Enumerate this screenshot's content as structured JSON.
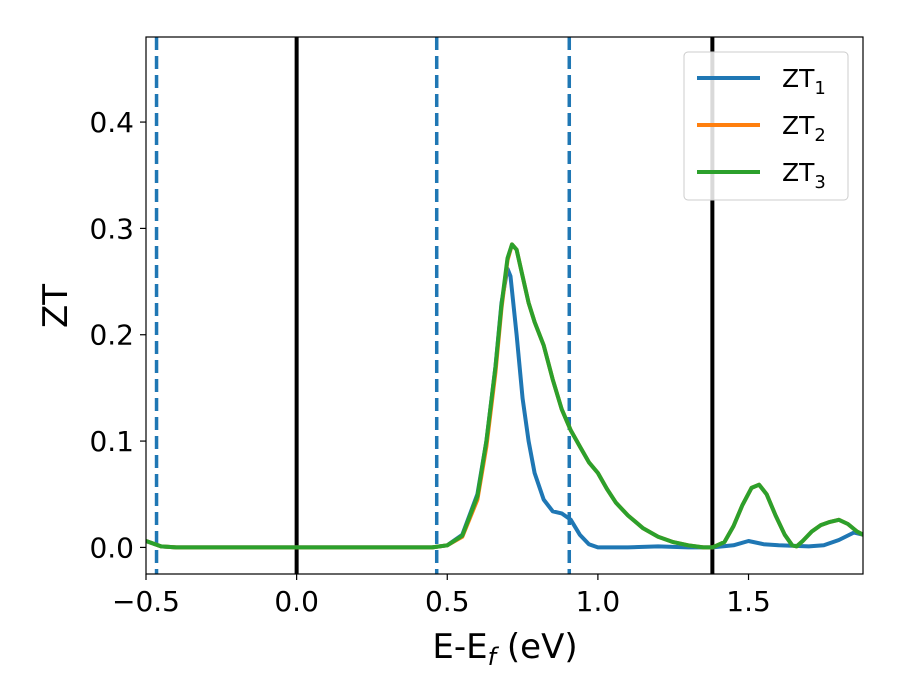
{
  "chart_data": {
    "type": "line",
    "xlabel": "E-E_f (eV)",
    "xlabel_parts": {
      "main": "E-E",
      "sub": "f",
      "tail": " (eV)"
    },
    "ylabel": "ZT",
    "xlim": [
      -0.5,
      1.88
    ],
    "ylim": [
      -0.025,
      0.48
    ],
    "x_ticks": [
      -0.5,
      0.0,
      0.5,
      1.0,
      1.5
    ],
    "x_tick_labels": [
      "−0.5",
      "0.0",
      "0.5",
      "1.0",
      "1.5"
    ],
    "y_ticks": [
      0.0,
      0.1,
      0.2,
      0.3,
      0.4
    ],
    "y_tick_labels": [
      "0.0",
      "0.1",
      "0.2",
      "0.3",
      "0.4"
    ],
    "grid": false,
    "legend_position": "top-right",
    "vertical_lines": [
      {
        "x": -0.465,
        "style": "dashed",
        "color": "#1f77b4"
      },
      {
        "x": 0.0,
        "style": "solid",
        "color": "#000000"
      },
      {
        "x": 0.465,
        "style": "dashed",
        "color": "#1f77b4"
      },
      {
        "x": 0.905,
        "style": "dashed",
        "color": "#1f77b4"
      },
      {
        "x": 1.38,
        "style": "solid",
        "color": "#000000"
      }
    ],
    "series": [
      {
        "name": "ZT1",
        "label_main": "ZT",
        "label_sub": "1",
        "color": "#1f77b4",
        "points": [
          [
            -0.5,
            0.006
          ],
          [
            -0.45,
            0.001
          ],
          [
            -0.4,
            0.0
          ],
          [
            0.0,
            0.0
          ],
          [
            0.3,
            0.0
          ],
          [
            0.45,
            0.0
          ],
          [
            0.5,
            0.002
          ],
          [
            0.55,
            0.012
          ],
          [
            0.6,
            0.05
          ],
          [
            0.63,
            0.1
          ],
          [
            0.66,
            0.17
          ],
          [
            0.68,
            0.23
          ],
          [
            0.7,
            0.262
          ],
          [
            0.71,
            0.255
          ],
          [
            0.73,
            0.2
          ],
          [
            0.75,
            0.14
          ],
          [
            0.77,
            0.1
          ],
          [
            0.79,
            0.07
          ],
          [
            0.82,
            0.045
          ],
          [
            0.85,
            0.034
          ],
          [
            0.88,
            0.032
          ],
          [
            0.91,
            0.026
          ],
          [
            0.94,
            0.012
          ],
          [
            0.97,
            0.003
          ],
          [
            1.0,
            0.0
          ],
          [
            1.1,
            0.0
          ],
          [
            1.2,
            0.001
          ],
          [
            1.3,
            0.0
          ],
          [
            1.38,
            0.0
          ],
          [
            1.45,
            0.002
          ],
          [
            1.5,
            0.006
          ],
          [
            1.55,
            0.003
          ],
          [
            1.6,
            0.002
          ],
          [
            1.7,
            0.001
          ],
          [
            1.75,
            0.002
          ],
          [
            1.8,
            0.007
          ],
          [
            1.85,
            0.014
          ],
          [
            1.88,
            0.012
          ]
        ]
      },
      {
        "name": "ZT2",
        "label_main": "ZT",
        "label_sub": "2",
        "color": "#ff7f0e",
        "points": [
          [
            -0.5,
            0.006
          ],
          [
            -0.45,
            0.001
          ],
          [
            -0.4,
            0.0
          ],
          [
            0.0,
            0.0
          ],
          [
            0.3,
            0.0
          ],
          [
            0.45,
            0.0
          ],
          [
            0.5,
            0.002
          ],
          [
            0.55,
            0.01
          ],
          [
            0.6,
            0.045
          ],
          [
            0.63,
            0.095
          ],
          [
            0.66,
            0.165
          ],
          [
            0.68,
            0.225
          ],
          [
            0.7,
            0.27
          ],
          [
            0.715,
            0.285
          ],
          [
            0.73,
            0.28
          ],
          [
            0.75,
            0.255
          ],
          [
            0.77,
            0.23
          ],
          [
            0.79,
            0.212
          ],
          [
            0.82,
            0.19
          ],
          [
            0.85,
            0.158
          ],
          [
            0.88,
            0.13
          ],
          [
            0.91,
            0.11
          ],
          [
            0.94,
            0.095
          ],
          [
            0.97,
            0.08
          ],
          [
            1.0,
            0.07
          ],
          [
            1.03,
            0.055
          ],
          [
            1.06,
            0.042
          ],
          [
            1.1,
            0.03
          ],
          [
            1.15,
            0.018
          ],
          [
            1.2,
            0.01
          ],
          [
            1.25,
            0.005
          ],
          [
            1.3,
            0.002
          ],
          [
            1.35,
            0.0
          ],
          [
            1.38,
            0.0
          ],
          [
            1.42,
            0.005
          ],
          [
            1.45,
            0.02
          ],
          [
            1.48,
            0.04
          ],
          [
            1.51,
            0.056
          ],
          [
            1.535,
            0.059
          ],
          [
            1.56,
            0.05
          ],
          [
            1.59,
            0.03
          ],
          [
            1.62,
            0.012
          ],
          [
            1.645,
            0.002
          ],
          [
            1.66,
            0.001
          ],
          [
            1.68,
            0.006
          ],
          [
            1.71,
            0.015
          ],
          [
            1.74,
            0.021
          ],
          [
            1.77,
            0.024
          ],
          [
            1.8,
            0.026
          ],
          [
            1.83,
            0.022
          ],
          [
            1.86,
            0.015
          ],
          [
            1.88,
            0.012
          ]
        ]
      },
      {
        "name": "ZT3",
        "label_main": "ZT",
        "label_sub": "3",
        "color": "#2ca02c",
        "points": [
          [
            -0.5,
            0.006
          ],
          [
            -0.45,
            0.001
          ],
          [
            -0.4,
            0.0
          ],
          [
            0.0,
            0.0
          ],
          [
            0.3,
            0.0
          ],
          [
            0.45,
            0.0
          ],
          [
            0.5,
            0.002
          ],
          [
            0.55,
            0.011
          ],
          [
            0.6,
            0.048
          ],
          [
            0.63,
            0.1
          ],
          [
            0.66,
            0.17
          ],
          [
            0.68,
            0.228
          ],
          [
            0.7,
            0.272
          ],
          [
            0.715,
            0.285
          ],
          [
            0.73,
            0.28
          ],
          [
            0.75,
            0.255
          ],
          [
            0.77,
            0.23
          ],
          [
            0.79,
            0.212
          ],
          [
            0.82,
            0.19
          ],
          [
            0.85,
            0.158
          ],
          [
            0.88,
            0.13
          ],
          [
            0.91,
            0.11
          ],
          [
            0.94,
            0.095
          ],
          [
            0.97,
            0.08
          ],
          [
            1.0,
            0.07
          ],
          [
            1.03,
            0.055
          ],
          [
            1.06,
            0.042
          ],
          [
            1.1,
            0.03
          ],
          [
            1.15,
            0.018
          ],
          [
            1.2,
            0.01
          ],
          [
            1.25,
            0.005
          ],
          [
            1.3,
            0.002
          ],
          [
            1.35,
            0.0
          ],
          [
            1.38,
            0.0
          ],
          [
            1.42,
            0.005
          ],
          [
            1.45,
            0.02
          ],
          [
            1.48,
            0.04
          ],
          [
            1.51,
            0.056
          ],
          [
            1.535,
            0.059
          ],
          [
            1.56,
            0.05
          ],
          [
            1.59,
            0.03
          ],
          [
            1.62,
            0.012
          ],
          [
            1.645,
            0.002
          ],
          [
            1.66,
            0.001
          ],
          [
            1.68,
            0.006
          ],
          [
            1.71,
            0.015
          ],
          [
            1.74,
            0.021
          ],
          [
            1.77,
            0.024
          ],
          [
            1.8,
            0.026
          ],
          [
            1.83,
            0.022
          ],
          [
            1.86,
            0.015
          ],
          [
            1.88,
            0.012
          ]
        ]
      }
    ]
  }
}
